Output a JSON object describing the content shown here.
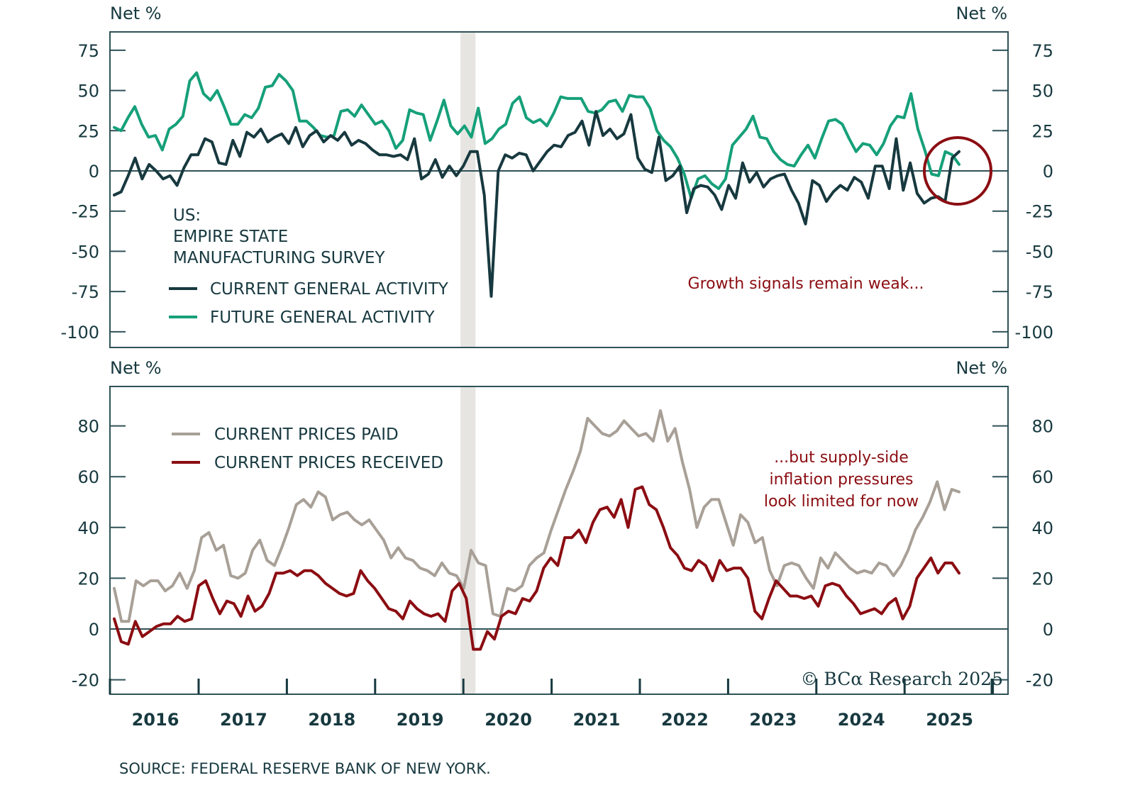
{
  "chart_data": [
    {
      "type": "line",
      "panel": "top",
      "title": "US: EMPIRE STATE MANUFACTURING SURVEY",
      "title_lines": [
        "US:",
        "EMPIRE STATE",
        "MANUFACTURING SURVEY"
      ],
      "ylabel_left": "Net %",
      "ylabel_right": "Net %",
      "ylim": [
        -110,
        80
      ],
      "yticks": [
        75,
        50,
        25,
        0,
        -25,
        -50,
        -75,
        -100
      ],
      "grid": false,
      "zero_line": true,
      "x_start": 2015.55,
      "x_step_months": 1,
      "legend_position": "left-middle",
      "annotation": "Growth signals remain weak...",
      "highlight_circle": {
        "x": 2025.45,
        "y": 0
      },
      "recession_shading": [
        2020.08,
        2020.25
      ],
      "series": [
        {
          "name": "CURRENT GENERAL ACTIVITY",
          "color": "#17393f",
          "values": [
            -15,
            -13,
            -3,
            8,
            -5,
            4,
            0,
            -5,
            -3,
            -9,
            2,
            10,
            10,
            20,
            18,
            5,
            4,
            19,
            9,
            24,
            21,
            26,
            18,
            21,
            23,
            17,
            27,
            15,
            22,
            25,
            18,
            22,
            19,
            24,
            16,
            19,
            17,
            13,
            10,
            10,
            9,
            10,
            7,
            20,
            -5,
            -2,
            7,
            -4,
            3,
            -3,
            3,
            12,
            12,
            -15,
            -78,
            0,
            10,
            8,
            11,
            10,
            0,
            6,
            12,
            16,
            15,
            22,
            24,
            31,
            16,
            37,
            22,
            26,
            20,
            23,
            35,
            8,
            1,
            -1,
            21,
            -6,
            -3,
            3,
            -26,
            -11,
            -9,
            -10,
            -15,
            -24,
            -9,
            -17,
            5,
            -7,
            -1,
            -10,
            -5,
            -3,
            -2,
            -12,
            -20,
            -33,
            -6,
            -9,
            -19,
            -13,
            -9,
            -12,
            -4,
            -7,
            -17,
            3,
            3,
            -11,
            20,
            -12,
            5,
            -14,
            -20,
            -17,
            -16,
            -19,
            8,
            12
          ],
          "last_value_note": "approximately"
        },
        {
          "name": "FUTURE GENERAL ACTIVITY",
          "color": "#16a07a",
          "values": [
            27,
            25,
            33,
            40,
            29,
            21,
            22,
            13,
            26,
            29,
            34,
            56,
            61,
            48,
            44,
            50,
            40,
            29,
            29,
            35,
            33,
            39,
            52,
            53,
            60,
            56,
            50,
            31,
            31,
            27,
            22,
            21,
            22,
            37,
            38,
            34,
            41,
            35,
            29,
            31,
            25,
            14,
            19,
            38,
            36,
            35,
            19,
            31,
            44,
            28,
            23,
            28,
            21,
            39,
            17,
            20,
            26,
            29,
            42,
            46,
            33,
            30,
            32,
            28,
            36,
            46,
            45,
            45,
            45,
            37,
            36,
            38,
            43,
            44,
            37,
            47,
            46,
            46,
            39,
            25,
            19,
            15,
            8,
            -2,
            -17,
            -5,
            -3,
            -8,
            -11,
            -5,
            16,
            21,
            26,
            34,
            21,
            20,
            12,
            7,
            4,
            3,
            10,
            16,
            8,
            20,
            31,
            32,
            29,
            20,
            12,
            17,
            16,
            10,
            17,
            28,
            34,
            33,
            48,
            26,
            13,
            -2,
            -3,
            12,
            10,
            4
          ]
        }
      ]
    },
    {
      "type": "line",
      "panel": "bottom",
      "ylabel_left": "Net %",
      "ylabel_right": "Net %",
      "ylim": [
        -25,
        95
      ],
      "yticks": [
        80,
        60,
        40,
        20,
        0,
        -20
      ],
      "grid": false,
      "zero_line": true,
      "legend_position": "top-left",
      "annotation": "...but supply-side inflation pressures look limited for now",
      "annotation_lines": [
        "...but supply-side",
        "inflation pressures",
        "look limited for now"
      ],
      "recession_shading": [
        2020.08,
        2020.25
      ],
      "xlabel": "",
      "xticks": [
        "2016",
        "2017",
        "2018",
        "2019",
        "2020",
        "2021",
        "2022",
        "2023",
        "2024",
        "2025"
      ],
      "series": [
        {
          "name": "CURRENT PRICES PAID",
          "color": "#a8a097",
          "values": [
            16,
            3,
            3,
            19,
            17,
            19,
            19,
            15,
            17,
            22,
            16,
            23,
            36,
            38,
            31,
            33,
            21,
            20,
            22,
            31,
            35,
            27,
            25,
            32,
            40,
            49,
            51,
            48,
            54,
            52,
            43,
            45,
            46,
            43,
            41,
            43,
            39,
            35,
            28,
            32,
            28,
            27,
            24,
            23,
            21,
            26,
            22,
            21,
            16,
            31,
            26,
            25,
            6,
            5,
            16,
            15,
            17,
            25,
            28,
            30,
            39,
            47,
            55,
            62,
            70,
            83,
            80,
            77,
            76,
            78,
            82,
            79,
            76,
            77,
            74,
            86,
            74,
            79,
            66,
            55,
            40,
            48,
            51,
            51,
            42,
            33,
            45,
            42,
            34,
            36,
            23,
            17,
            25,
            26,
            25,
            20,
            16,
            28,
            24,
            30,
            27,
            24,
            22,
            23,
            22,
            26,
            25,
            21,
            25,
            31,
            39,
            44,
            50,
            58,
            47,
            55,
            54
          ]
        },
        {
          "name": "CURRENT PRICES RECEIVED",
          "color": "#8b0d12",
          "values": [
            4,
            -5,
            -6,
            3,
            -3,
            -1,
            1,
            2,
            2,
            5,
            3,
            4,
            17,
            19,
            12,
            6,
            11,
            10,
            5,
            13,
            7,
            9,
            14,
            22,
            22,
            23,
            21,
            23,
            23,
            21,
            18,
            16,
            14,
            13,
            14,
            23,
            19,
            16,
            12,
            8,
            7,
            4,
            11,
            8,
            6,
            5,
            6,
            3,
            15,
            18,
            12,
            -8,
            -8,
            -1,
            -4,
            5,
            7,
            6,
            12,
            11,
            15,
            24,
            28,
            25,
            36,
            36,
            39,
            34,
            42,
            47,
            48,
            44,
            51,
            40,
            55,
            56,
            49,
            47,
            40,
            32,
            29,
            24,
            23,
            27,
            25,
            19,
            27,
            23,
            24,
            24,
            20,
            7,
            4,
            12,
            19,
            16,
            13,
            13,
            12,
            13,
            9,
            17,
            18,
            17,
            13,
            10,
            6,
            7,
            8,
            6,
            10,
            12,
            4,
            9,
            20,
            24,
            28,
            22,
            26,
            26,
            22
          ]
        }
      ]
    }
  ],
  "footer": {
    "source": "SOURCE: FEDERAL RESERVE BANK OF NEW YORK.",
    "copyright": "© BCα Research 2025"
  }
}
